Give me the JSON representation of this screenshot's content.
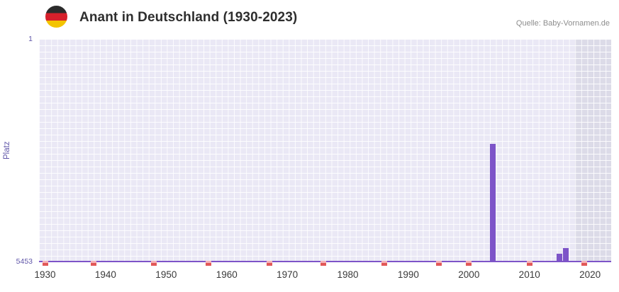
{
  "header": {
    "flag_icon": "german-flag-roundel",
    "source": "Quelle: Baby-Vornamen.de"
  },
  "chart_data": {
    "type": "bar",
    "title": "Anant in Deutschland (1930-2023)",
    "ylabel": "Platz",
    "xlabel": "",
    "legend": false,
    "grid": true,
    "y_axis": {
      "top_tick": "1",
      "bottom_tick": "5453",
      "min": 1,
      "max": 5453,
      "inverted": true
    },
    "x_axis": {
      "min": 1929,
      "max": 2023.5,
      "tick_years": [
        1930,
        1940,
        1950,
        1960,
        1970,
        1980,
        1990,
        2000,
        2010,
        2020
      ]
    },
    "series": [
      {
        "name": "Platz",
        "points": [
          {
            "year": 2004,
            "rank": 2560
          },
          {
            "year": 2015,
            "rank": 5250
          },
          {
            "year": 2016,
            "rank": 5110
          }
        ]
      }
    ],
    "red_marker_years": [
      1930,
      1938,
      1948,
      1957,
      1967,
      1976,
      1986,
      1995,
      2000,
      2010,
      2019
    ],
    "highlight_band": {
      "from_year": 2017.5,
      "to_year": 2023.5
    },
    "colors": {
      "bar": "#7d54c8",
      "axis_line": "#7d54c8",
      "marker_top": "#f3b3bb",
      "marker_bottom": "#e25757",
      "band": "#dcdbe8",
      "plot_bg": "#eae8f5",
      "grid_line": "#ffffff",
      "y_tick_text": "#5f55a8",
      "x_tick_text": "#3a3a3a",
      "title_text": "#2e2e2e",
      "source_text": "#8d8d8d",
      "flag": [
        "#2b2b2b",
        "#d6202b",
        "#f3c400"
      ]
    }
  }
}
